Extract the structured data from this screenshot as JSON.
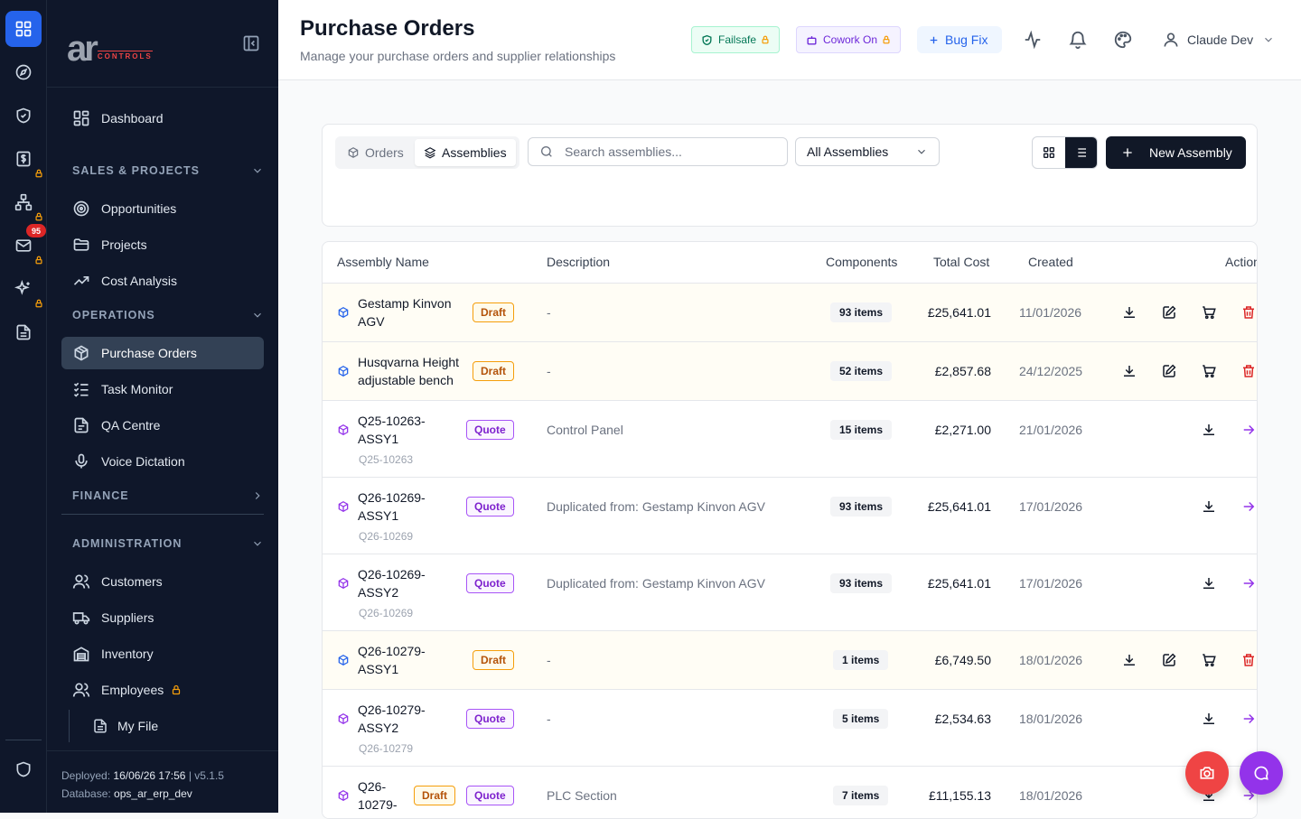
{
  "brand": {
    "logo_main": "ar",
    "logo_sub": "CONTROLS"
  },
  "rail": {
    "mail_badge": "95"
  },
  "sidebar": {
    "dashboard": "Dashboard",
    "sections": {
      "sales": "SALES & PROJECTS",
      "operations": "OPERATIONS",
      "finance": "FINANCE",
      "administration": "ADMINISTRATION"
    },
    "items": {
      "opportunities": "Opportunities",
      "projects": "Projects",
      "cost_analysis": "Cost Analysis",
      "purchase_orders": "Purchase Orders",
      "task_monitor": "Task Monitor",
      "qa_centre": "QA Centre",
      "voice_dictation": "Voice Dictation",
      "customers": "Customers",
      "suppliers": "Suppliers",
      "inventory": "Inventory",
      "employees": "Employees",
      "my_file": "My File"
    },
    "footer": {
      "deployed_label": "Deployed:",
      "deployed_value": "16/06/26 17:56",
      "version": "| v5.1.5",
      "database_label": "Database:",
      "database_value": "ops_ar_erp_dev"
    }
  },
  "header": {
    "title": "Purchase Orders",
    "subtitle": "Manage your purchase orders and supplier relationships",
    "failsafe": "Failsafe",
    "cowork": "Cowork On",
    "bugfix": "Bug Fix",
    "user": "Claude Dev"
  },
  "toolbar": {
    "tab_orders": "Orders",
    "tab_assemblies": "Assemblies",
    "search_placeholder": "Search assemblies...",
    "filter_value": "All Assemblies",
    "new_button": "New Assembly"
  },
  "table": {
    "headers": {
      "name": "Assembly Name",
      "description": "Description",
      "components": "Components",
      "total_cost": "Total Cost",
      "created": "Created",
      "actions": "Actions"
    },
    "rows": [
      {
        "name1": "Gestamp Kinvon",
        "name2": "AGV",
        "code": "",
        "status": "Draft",
        "description": "-",
        "components": "93 items",
        "cost": "£25,641.01",
        "created": "11/01/2026"
      },
      {
        "name1": "Husqvarna Height",
        "name2": "adjustable bench",
        "code": "",
        "status": "Draft",
        "description": "-",
        "components": "52 items",
        "cost": "£2,857.68",
        "created": "24/12/2025"
      },
      {
        "name1": "Q25-10263-",
        "name2": "ASSY1",
        "code": "Q25-10263",
        "status": "Quote",
        "description": "Control Panel",
        "components": "15 items",
        "cost": "£2,271.00",
        "created": "21/01/2026"
      },
      {
        "name1": "Q26-10269-",
        "name2": "ASSY1",
        "code": "Q26-10269",
        "status": "Quote",
        "description": "Duplicated from: Gestamp Kinvon AGV",
        "components": "93 items",
        "cost": "£25,641.01",
        "created": "17/01/2026"
      },
      {
        "name1": "Q26-10269-",
        "name2": "ASSY2",
        "code": "Q26-10269",
        "status": "Quote",
        "description": "Duplicated from: Gestamp Kinvon AGV",
        "components": "93 items",
        "cost": "£25,641.01",
        "created": "17/01/2026"
      },
      {
        "name1": "Q26-10279-",
        "name2": "ASSY1",
        "code": "",
        "status": "Draft",
        "description": "-",
        "components": "1 items",
        "cost": "£6,749.50",
        "created": "18/01/2026"
      },
      {
        "name1": "Q26-10279-",
        "name2": "ASSY2",
        "code": "Q26-10279",
        "status": "Quote",
        "description": "-",
        "components": "5 items",
        "cost": "£2,534.63",
        "created": "18/01/2026"
      },
      {
        "name1": "Q26-",
        "name2": "10279-",
        "code": "",
        "status": "Draft",
        "status2": "Quote",
        "description": "PLC Section",
        "components": "7 items",
        "cost": "£11,155.13",
        "created": "18/01/2026"
      }
    ]
  },
  "colors": {
    "accent": "#2563eb",
    "sidebar_bg": "#0f172a",
    "draft": "#b45309",
    "quote": "#7e22ce",
    "danger": "#dc2626",
    "fab_camera": "#ef4444",
    "fab_chat": "#9333ea"
  }
}
